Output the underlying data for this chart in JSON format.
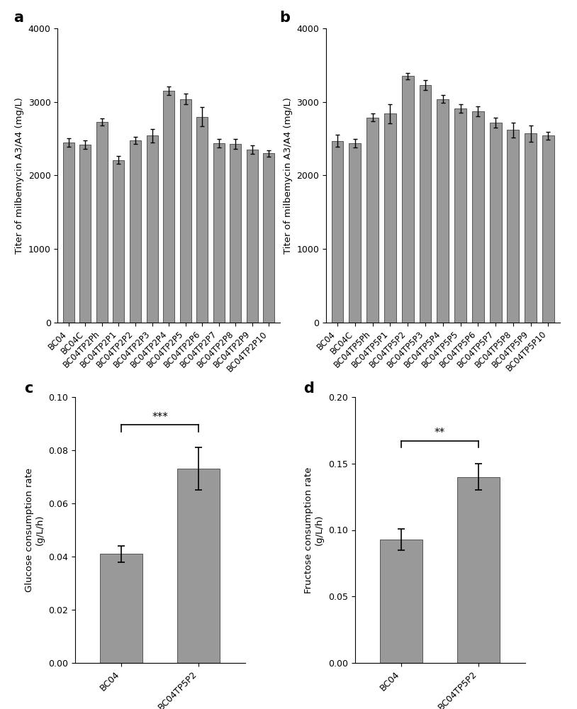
{
  "panel_a": {
    "categories": [
      "BC04",
      "BC04C",
      "BC04TP2Ph",
      "BC04TP2P1",
      "BC04TP2P2",
      "BC04TP2P3",
      "BC04TP2P4",
      "BC04TP2P5",
      "BC04TP2P6",
      "BC04TP2P7",
      "BC04TP2P8",
      "BC04TP2P9",
      "BC04TP2P10"
    ],
    "values": [
      2450,
      2420,
      2730,
      2210,
      2480,
      2540,
      3150,
      3040,
      2800,
      2440,
      2430,
      2350,
      2300
    ],
    "errors": [
      60,
      55,
      50,
      55,
      50,
      90,
      55,
      70,
      130,
      60,
      70,
      55,
      45
    ],
    "ylabel": "Titer of milbemycin A3/A4 (mg/L)",
    "ylim": [
      0,
      4000
    ],
    "yticks": [
      0,
      1000,
      2000,
      3000,
      4000
    ],
    "label": "a"
  },
  "panel_b": {
    "categories": [
      "BC04",
      "BC04C",
      "BC04TP5Ph",
      "BC04TP5P1",
      "BC04TP5P2",
      "BC04TP5P3",
      "BC04TP5P4",
      "BC04TP5P5",
      "BC04TP5P6",
      "BC04TP5P7",
      "BC04TP5P8",
      "BC04TP5P9",
      "BC04TP5P10"
    ],
    "values": [
      2470,
      2440,
      2790,
      2840,
      3350,
      3230,
      3040,
      2910,
      2870,
      2720,
      2620,
      2570,
      2540
    ],
    "errors": [
      80,
      60,
      50,
      130,
      40,
      70,
      55,
      60,
      65,
      65,
      100,
      110,
      50
    ],
    "ylabel": "Titer of milbemycin A3/A4 (mg/L)",
    "ylim": [
      0,
      4000
    ],
    "yticks": [
      0,
      1000,
      2000,
      3000,
      4000
    ],
    "label": "b"
  },
  "panel_c": {
    "categories": [
      "BC04",
      "BC04TP5P2"
    ],
    "values": [
      0.041,
      0.073
    ],
    "errors": [
      0.003,
      0.008
    ],
    "ylabel": "Glucose consumption rate\n(g/L/h)",
    "ylim": [
      0,
      0.1
    ],
    "yticks": [
      0.0,
      0.02,
      0.04,
      0.06,
      0.08,
      0.1
    ],
    "significance": "***",
    "label": "c"
  },
  "panel_d": {
    "categories": [
      "BC04",
      "BC04TP5P2"
    ],
    "values": [
      0.093,
      0.14
    ],
    "errors": [
      0.008,
      0.01
    ],
    "ylabel": "Fructose consumption rate\n(g/L/h)",
    "ylim": [
      0,
      0.2
    ],
    "yticks": [
      0.0,
      0.05,
      0.1,
      0.15,
      0.2
    ],
    "significance": "**",
    "label": "d"
  },
  "bar_color": "#999999",
  "bar_edgecolor": "#555555",
  "background_color": "#ffffff",
  "tick_fontsize": 9,
  "label_fontsize": 9.5,
  "panel_label_fontsize": 15
}
